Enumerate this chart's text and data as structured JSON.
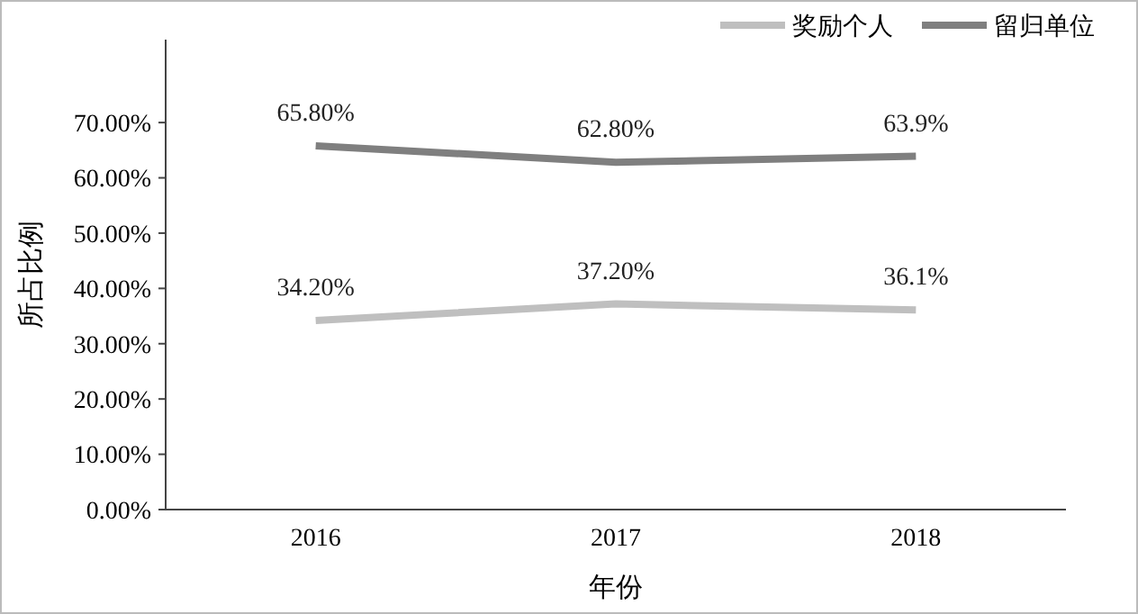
{
  "chart_data": {
    "type": "line",
    "xlabel": "年份",
    "ylabel": "所占比例",
    "categories": [
      "2016",
      "2017",
      "2018"
    ],
    "series": [
      {
        "name": "奖励个人",
        "color": "#bfbfbf",
        "values": [
          34.2,
          37.2,
          36.1
        ],
        "value_labels": [
          "34.20%",
          "37.20%",
          "36.1%"
        ]
      },
      {
        "name": "留归单位",
        "color": "#7f7f7f",
        "values": [
          65.8,
          62.8,
          63.9
        ],
        "value_labels": [
          "65.80%",
          "62.80%",
          "63.9%"
        ]
      }
    ],
    "ylim": [
      0,
      85
    ],
    "yticks": [
      {
        "value": 0,
        "label": "0.00%"
      },
      {
        "value": 10,
        "label": "10.00%"
      },
      {
        "value": 20,
        "label": "20.00%"
      },
      {
        "value": 30,
        "label": "30.00%"
      },
      {
        "value": 40,
        "label": "40.00%"
      },
      {
        "value": 50,
        "label": "50.00%"
      },
      {
        "value": 60,
        "label": "60.00%"
      },
      {
        "value": 70,
        "label": "70.00%"
      }
    ],
    "grid": false,
    "legend": "top right",
    "marker": "none",
    "line_style": "solid"
  }
}
